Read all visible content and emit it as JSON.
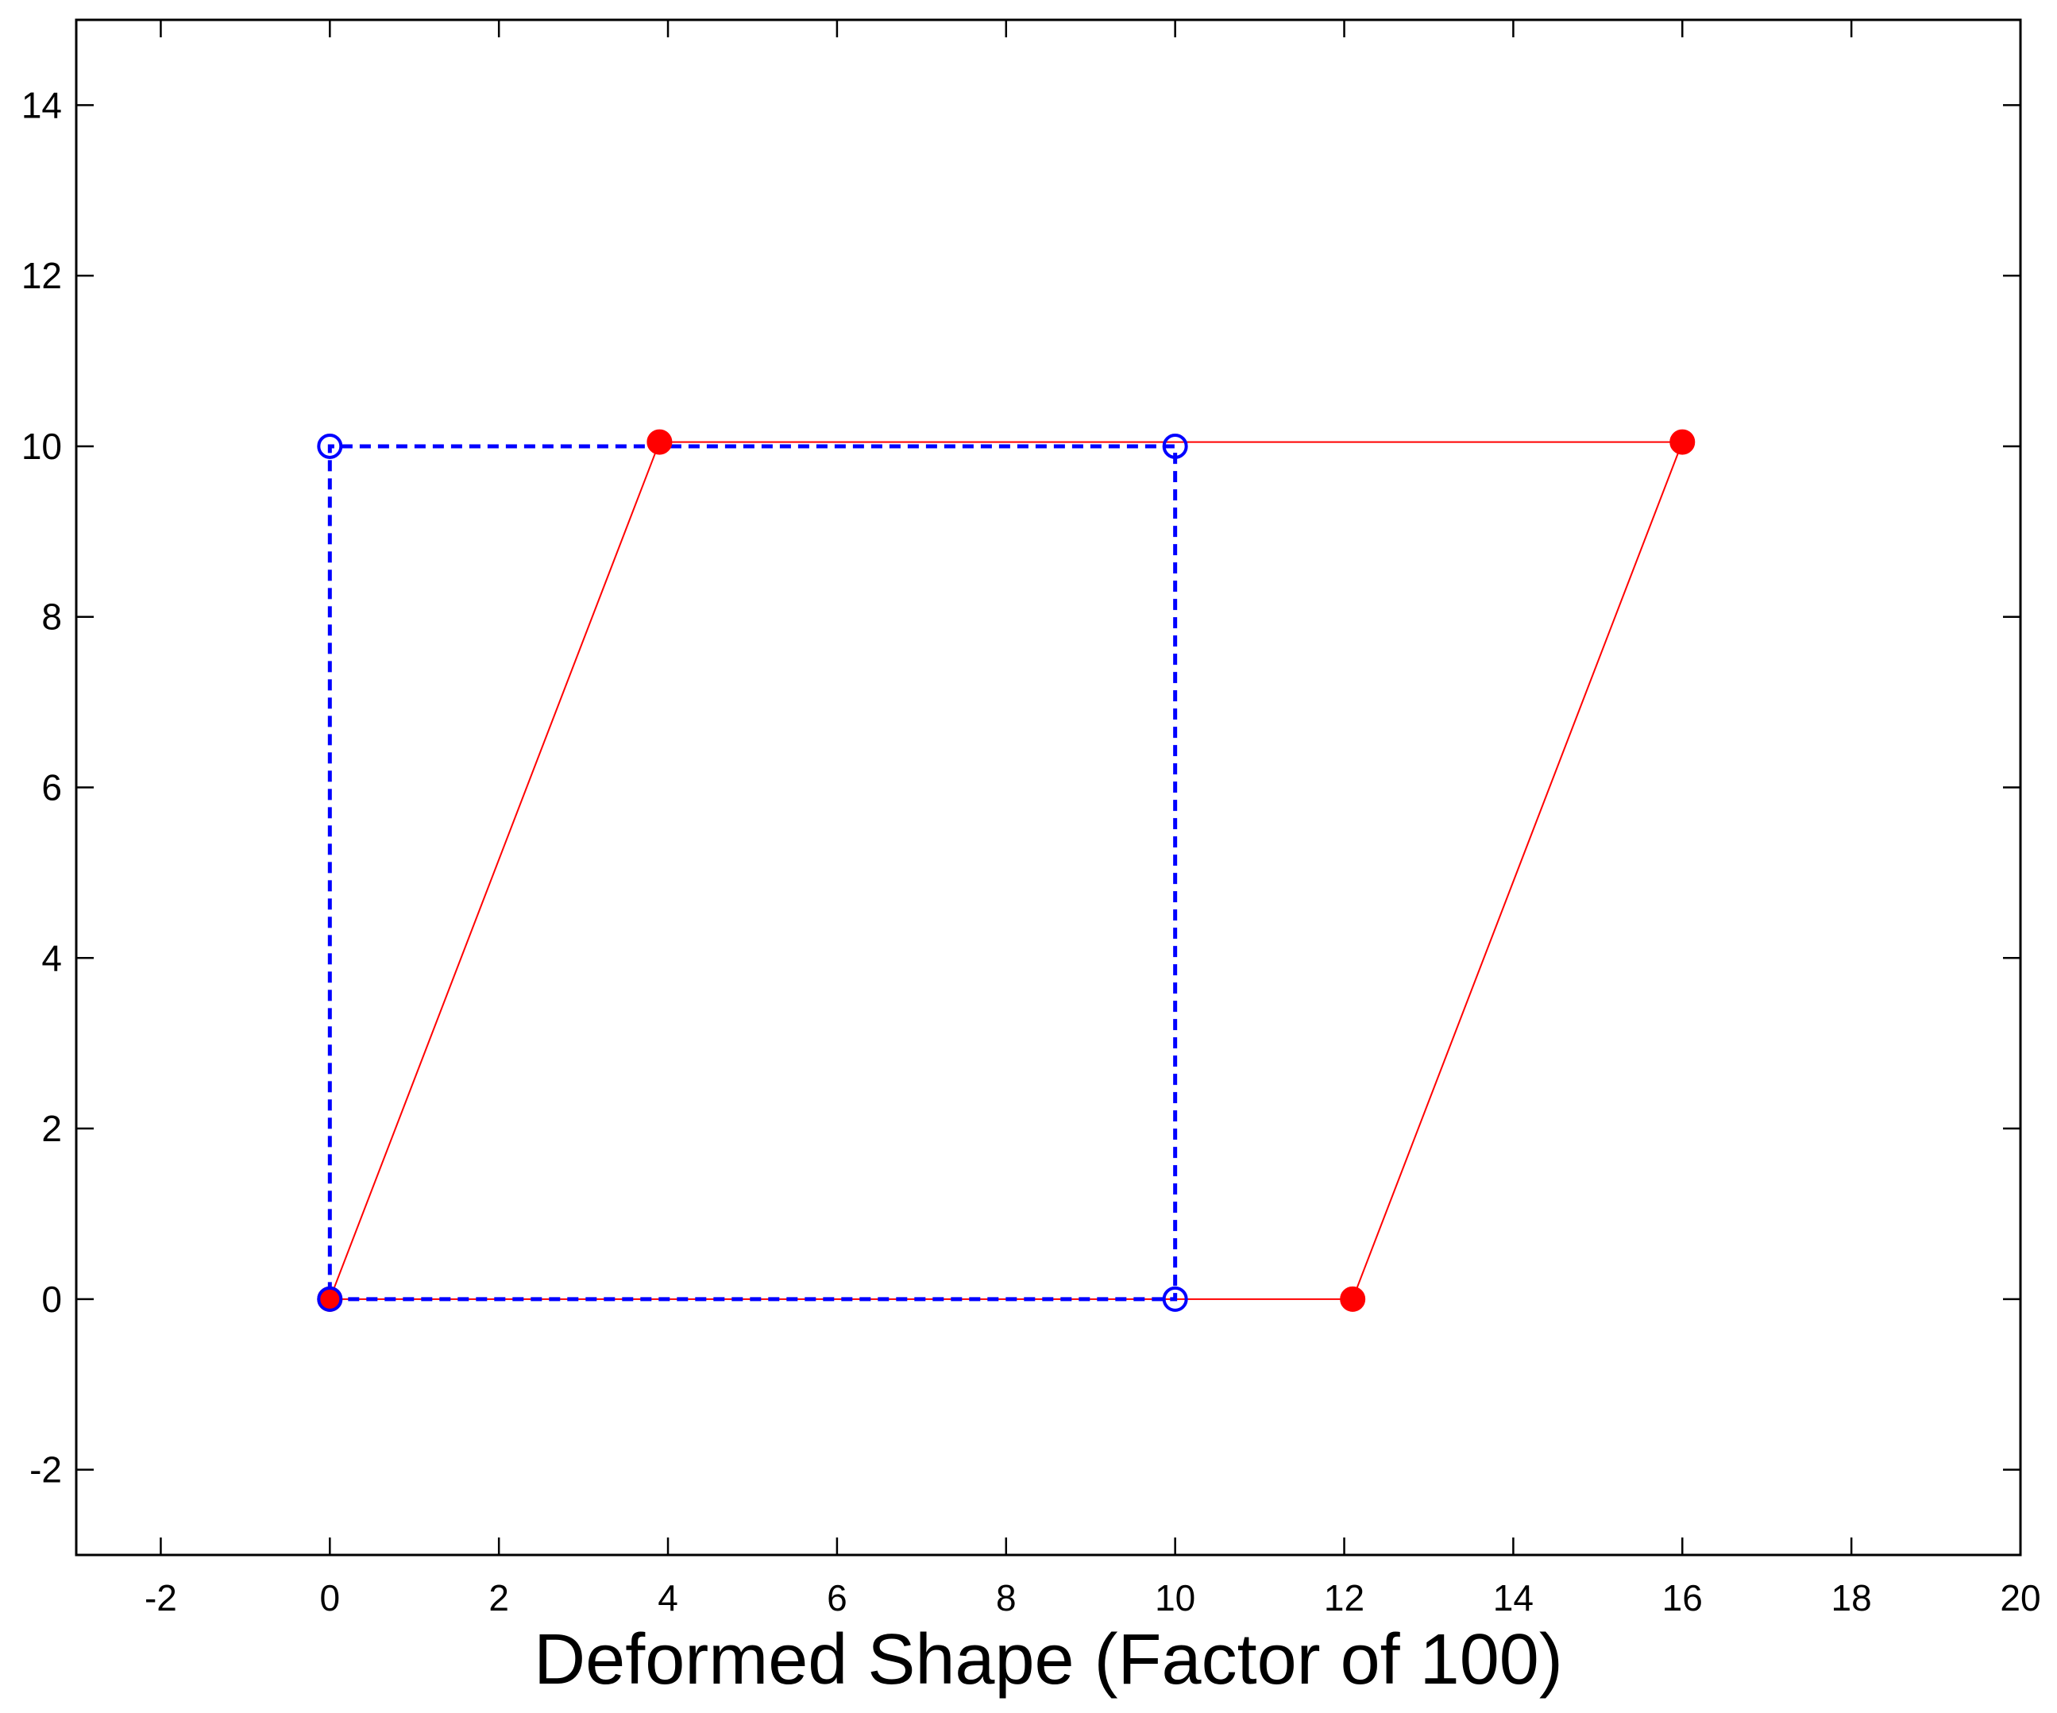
{
  "chart_data": {
    "type": "line",
    "title": "",
    "xlabel": "Deformed Shape (Factor of 100)",
    "ylabel": "",
    "xlim": [
      -3,
      20
    ],
    "ylim": [
      -3,
      15
    ],
    "xticks": [
      "-2",
      "0",
      "2",
      "4",
      "6",
      "8",
      "10",
      "12",
      "14",
      "16",
      "18",
      "20"
    ],
    "yticks": [
      "-2",
      "0",
      "2",
      "4",
      "6",
      "8",
      "10",
      "12",
      "14"
    ],
    "grid": false,
    "legend": "none",
    "series": [
      {
        "style": "red solid line, filled circle markers",
        "color": "#ff0000",
        "points": [
          [
            0,
            0
          ],
          [
            12.1,
            0
          ],
          [
            16.0,
            10.05
          ],
          [
            3.9,
            10.05
          ],
          [
            0,
            0
          ]
        ]
      },
      {
        "style": "blue dashed line, open circle markers",
        "color": "#0000ff",
        "points": [
          [
            0,
            0
          ],
          [
            10,
            0
          ],
          [
            10,
            10
          ],
          [
            0,
            10
          ],
          [
            0,
            0
          ]
        ]
      }
    ]
  }
}
